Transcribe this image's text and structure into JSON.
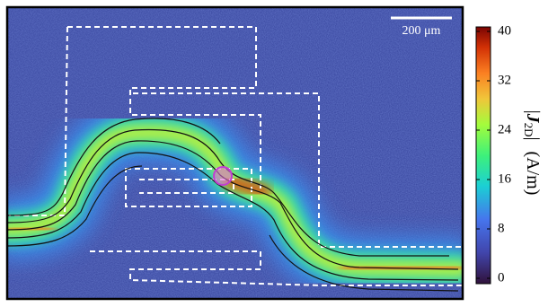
{
  "scale_bar": {
    "label": "200 μm"
  },
  "colorbar": {
    "symbol": "J",
    "subscript": "2D",
    "unit": "(A/m)",
    "range": [
      0,
      40
    ],
    "ticks": [
      0,
      8,
      16,
      24,
      32,
      40
    ]
  }
}
